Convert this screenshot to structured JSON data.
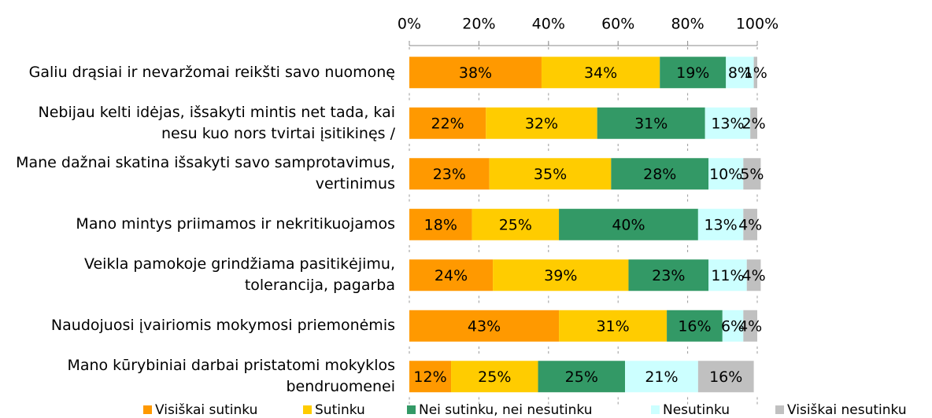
{
  "chart_data": {
    "type": "stacked-bar-horizontal",
    "categories": [
      "Galiu drąsiai ir nevaržomai reikšti savo nuomonę",
      "Nebijau kelti idėjas, išsakyti mintis net tada, kai nesu kuo nors tvirtai įsitikinęs /",
      "Mane dažnai skatina išsakyti savo samprotavimus, vertinimus",
      "Mano mintys priimamos ir nekritikuojamos",
      "Veikla pamokoje grindžiama pasitikėjimu, tolerancija, pagarba",
      "Naudojuosi įvairiomis mokymosi priemonėmis",
      "Mano kūrybiniai darbai pristatomi mokyklos bendruomenei"
    ],
    "series": [
      {
        "name": "Visiškai sutinku",
        "color": "#ff9900",
        "values": [
          38,
          22,
          23,
          18,
          24,
          43,
          12
        ],
        "value_labels": [
          "38%",
          "22%",
          "23%",
          "18%",
          "24%",
          "43%",
          "12%"
        ]
      },
      {
        "name": "Sutinku",
        "color": "#ffcc00",
        "values": [
          34,
          32,
          35,
          25,
          39,
          31,
          25
        ],
        "value_labels": [
          "34%",
          "32%",
          "35%",
          "25%",
          "39%",
          "31%",
          "25%"
        ]
      },
      {
        "name": "Nei sutinku, nei nesutinku",
        "color": "#339966",
        "values": [
          19,
          31,
          28,
          40,
          23,
          16,
          25
        ],
        "value_labels": [
          "19%",
          "31%",
          "28%",
          "40%",
          "23%",
          "16%",
          "25%"
        ]
      },
      {
        "name": "Nesutinku",
        "color": "#ccffff",
        "values": [
          8,
          13,
          10,
          13,
          11,
          6,
          21
        ],
        "value_labels": [
          "8%",
          "13%",
          "10%",
          "13%",
          "11%",
          "6%",
          "21%"
        ]
      },
      {
        "name": "Visiškai nesutinku",
        "color": "#c0c0c0",
        "values": [
          1,
          2,
          5,
          4,
          4,
          4,
          16
        ],
        "value_labels": [
          "1%",
          "2%",
          "5%",
          "4%",
          "4%",
          "4%",
          "16%"
        ]
      }
    ],
    "xlim": [
      0,
      100
    ],
    "xticks": [
      {
        "value": 0,
        "label": "0%"
      },
      {
        "value": 20,
        "label": "20%"
      },
      {
        "value": 40,
        "label": "40%"
      },
      {
        "value": 60,
        "label": "60%"
      },
      {
        "value": 80,
        "label": "80%"
      },
      {
        "value": 100,
        "label": "100%"
      }
    ],
    "grid": true,
    "legend": "bottom"
  }
}
